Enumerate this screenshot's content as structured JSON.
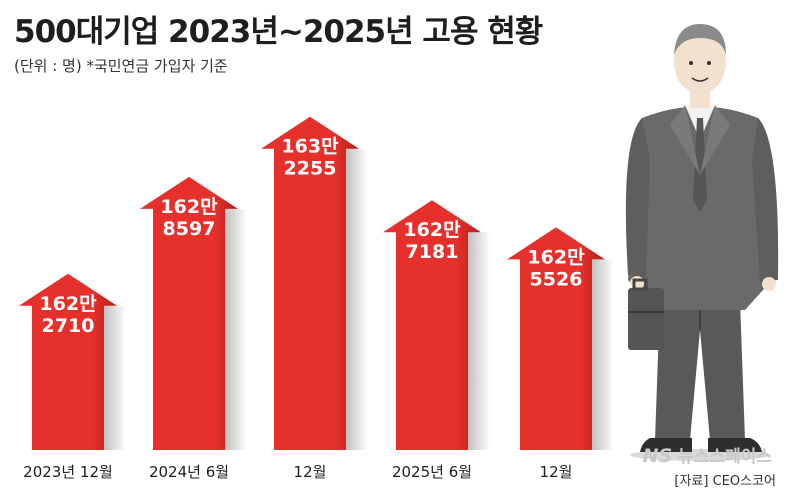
{
  "title": "500대기업 2023년~2025년 고용 현황",
  "subtitle": "(단위 : 명) *국민연금 가입자 기준",
  "source": "[자료] CEO스코어",
  "watermark": {
    "logo": "NS",
    "text": "뉴스스페이스"
  },
  "colors": {
    "arrow": "#e5302b",
    "arrow_shadow": "#b81d18",
    "text": "#1e1e1e"
  },
  "illustration": {
    "icon": "businessman-with-briefcase-icon"
  },
  "chart_data": {
    "type": "bar",
    "categories": [
      "2023년 12월",
      "2024년 6월",
      "12월",
      "2025년 6월",
      "12월"
    ],
    "values": [
      1622710,
      1628597,
      1632255,
      1627181,
      1625526
    ],
    "data_labels": [
      [
        "162만",
        "2710"
      ],
      [
        "162만",
        "8597"
      ],
      [
        "163만",
        "2255"
      ],
      [
        "162만",
        "7181"
      ],
      [
        "162만",
        "5526"
      ]
    ],
    "ylim": [
      1612000,
      1634000
    ],
    "grid": false,
    "legend": "none"
  }
}
